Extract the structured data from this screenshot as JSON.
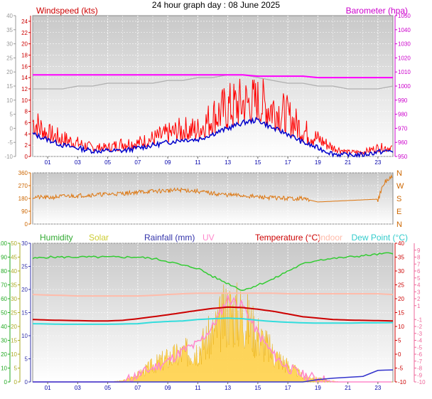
{
  "title": "24 hour graph day : 08 June 2025",
  "x_tick_labels": [
    "01",
    "03",
    "05",
    "07",
    "09",
    "11",
    "13",
    "15",
    "17",
    "19",
    "21",
    "23"
  ],
  "colors": {
    "wind": "#ff0000",
    "wind_avg": "#0000cc",
    "baro": "#ff00ff",
    "humidity": "#33cc33",
    "solar": "#ffcc33",
    "rain": "#3333cc",
    "uv": "#ff88cc",
    "temperature": "#cc0000",
    "indoor": "#ffbbaa",
    "dewpoint": "#33dddd",
    "gray": "#b0b0b0",
    "wind_dir": "#dd7711"
  },
  "chart_data": [
    {
      "type": "line",
      "id": "wind-baro",
      "left_label": "Windspeed (kts)",
      "right_label": "Barometer (hpa)",
      "ylim_left": [
        0,
        25
      ],
      "ylim_right": [
        950,
        1050
      ],
      "ylim_outer": [
        -10,
        40
      ],
      "y_ticks_left": [
        0,
        2,
        4,
        6,
        8,
        10,
        12,
        14,
        16,
        18,
        20,
        22,
        24
      ],
      "y_ticks_right": [
        950,
        960,
        970,
        980,
        990,
        1000,
        1010,
        1020,
        1030,
        1040,
        1050
      ],
      "y_ticks_outer": [
        -10,
        -5,
        0,
        5,
        10,
        15,
        20,
        25,
        30,
        35,
        40
      ],
      "x": [
        0,
        1,
        2,
        3,
        4,
        5,
        6,
        7,
        8,
        9,
        10,
        11,
        12,
        13,
        14,
        15,
        16,
        17,
        18,
        19,
        20,
        21,
        22,
        23,
        24
      ],
      "series": [
        {
          "key": "gust",
          "values": [
            8,
            5,
            4,
            3,
            2,
            2,
            3,
            3,
            4,
            5,
            6,
            6,
            9,
            11,
            12,
            12,
            11,
            9,
            6,
            4,
            2,
            1,
            1,
            2,
            2
          ]
        },
        {
          "key": "average",
          "values": [
            4,
            3,
            2,
            1.5,
            1,
            1,
            1,
            1.5,
            2,
            2.5,
            3,
            3,
            4,
            5,
            6,
            6.5,
            5,
            4,
            2.5,
            1.5,
            0.5,
            0.2,
            0.3,
            0.8,
            1
          ]
        },
        {
          "key": "barometer",
          "values": [
            1008,
            1008,
            1008,
            1008,
            1008,
            1008,
            1008,
            1008,
            1008,
            1008,
            1008,
            1008,
            1008,
            1008,
            1008,
            1007,
            1007,
            1007,
            1007,
            1006,
            1006,
            1006,
            1006,
            1006,
            1006
          ]
        },
        {
          "key": "gray",
          "values": [
            12,
            12,
            12,
            12.5,
            12.5,
            13,
            13,
            13,
            13,
            13.5,
            13.5,
            14,
            14,
            14.5,
            14.5,
            14,
            13.5,
            13,
            13,
            12.5,
            12.5,
            12,
            12,
            12,
            12.5
          ]
        }
      ]
    },
    {
      "type": "line",
      "id": "wind-direction",
      "ylim": [
        0,
        360
      ],
      "y_ticks": [
        0,
        90,
        180,
        270,
        360
      ],
      "compass_labels": [
        "N",
        "E",
        "S",
        "W",
        "N"
      ],
      "x": [
        0,
        1,
        2,
        3,
        4,
        5,
        6,
        7,
        8,
        9,
        10,
        11,
        12,
        13,
        14,
        15,
        16,
        17,
        18,
        19,
        20,
        21,
        22,
        23,
        23.5,
        24
      ],
      "values": [
        190,
        185,
        195,
        200,
        205,
        210,
        215,
        225,
        230,
        235,
        240,
        230,
        215,
        205,
        200,
        190,
        185,
        180,
        180,
        155,
        160,
        165,
        170,
        175,
        300,
        330
      ]
    },
    {
      "type": "line",
      "id": "multi",
      "labels": [
        "Humidity",
        "Solar",
        "Rainfall (mm)",
        "UV",
        "Temperature (°C)",
        "Indoor",
        "Dew Point (°C)"
      ],
      "ylim_humidity": [
        0,
        100
      ],
      "ylim_solar": [
        0,
        50
      ],
      "ylim_rain": [
        0,
        30
      ],
      "ylim_temp": [
        -10,
        40
      ],
      "ylim_uv": [
        -10,
        10
      ],
      "y_ticks_humidity": [
        0,
        10,
        20,
        30,
        40,
        50,
        60,
        70,
        80,
        90,
        100
      ],
      "y_ticks_solar": [
        0,
        5,
        10,
        15,
        20,
        25,
        30,
        35,
        40,
        45,
        50
      ],
      "y_ticks_rain": [
        0,
        5,
        10,
        15,
        20,
        25,
        30
      ],
      "y_ticks_temp": [
        -10,
        -5,
        0,
        5,
        10,
        15,
        20,
        25,
        30,
        35,
        40
      ],
      "y_ticks_uv": [
        -10,
        -9,
        -8,
        -7,
        -6,
        -5,
        -4,
        -3,
        -2,
        -1,
        1,
        2,
        3,
        4,
        5,
        6,
        7,
        8,
        9
      ],
      "x": [
        0,
        1,
        2,
        3,
        4,
        5,
        6,
        7,
        8,
        9,
        10,
        11,
        12,
        13,
        14,
        15,
        16,
        17,
        18,
        19,
        20,
        21,
        22,
        23,
        24
      ],
      "series": [
        {
          "key": "humidity",
          "values": [
            89,
            90,
            90,
            90,
            90,
            90,
            90,
            90,
            89,
            87,
            84,
            82,
            76,
            71,
            66,
            70,
            74,
            80,
            85,
            88,
            89,
            90,
            91,
            92,
            93
          ]
        },
        {
          "key": "rain",
          "values": [
            0,
            0,
            0,
            0,
            0,
            0,
            0,
            0,
            0,
            0,
            0,
            0,
            0,
            0,
            0,
            0,
            0,
            0,
            0,
            0.5,
            0.8,
            1.0,
            1.2,
            2.5,
            2.6
          ]
        },
        {
          "key": "temperature",
          "values": [
            12.5,
            12.3,
            12.2,
            12.1,
            12.0,
            12.0,
            12.2,
            12.8,
            13.5,
            14.2,
            15.0,
            15.8,
            16.5,
            17.0,
            16.8,
            16.2,
            15.5,
            14.5,
            13.5,
            13.0,
            12.5,
            12.3,
            12.2,
            12.1,
            12.0
          ]
        },
        {
          "key": "indoor",
          "values": [
            21.5,
            21.3,
            21.2,
            21.0,
            21.0,
            21.0,
            21.0,
            21.0,
            21.2,
            21.5,
            21.8,
            22.0,
            22.0,
            22.0,
            22.0,
            22.0,
            22.0,
            21.8,
            21.8,
            21.8,
            21.8,
            21.8,
            21.8,
            21.8,
            21.5
          ]
        },
        {
          "key": "dewpoint",
          "values": [
            11.0,
            10.9,
            10.8,
            10.8,
            10.8,
            10.8,
            10.9,
            11.0,
            11.5,
            11.8,
            12.0,
            12.5,
            12.8,
            13.0,
            12.8,
            12.2,
            11.8,
            11.5,
            11.3,
            11.2,
            11.2,
            11.2,
            11.3,
            11.3,
            11.4
          ]
        },
        {
          "key": "solar",
          "values": [
            0,
            0,
            0,
            0,
            0,
            0,
            0.5,
            3,
            7,
            10,
            12,
            14,
            20,
            30,
            28,
            20,
            12,
            7,
            2.5,
            1.5,
            0.3,
            0,
            0,
            0,
            0
          ]
        },
        {
          "key": "uv",
          "values": [
            -10,
            -10,
            -10,
            -10,
            -10,
            -10,
            -10,
            -9,
            -8,
            -7,
            -5.5,
            -4.5,
            -2,
            2,
            1,
            -3,
            -6,
            -8,
            -9,
            -9.5,
            -10,
            -10,
            -10,
            -10,
            -10
          ]
        }
      ]
    }
  ]
}
